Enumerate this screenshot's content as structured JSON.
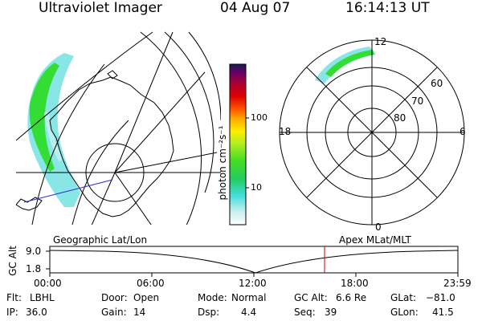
{
  "header": {
    "instrument": "Ultraviolet Imager",
    "date": "04 Aug 07",
    "time": "16:14:13 UT"
  },
  "colorbar": {
    "label": "photon cm⁻²s⁻¹",
    "ticks": [
      "100",
      "10"
    ]
  },
  "polar_plot": {
    "mlt_labels": [
      "12",
      "18",
      "6",
      "0"
    ],
    "lat_labels": [
      "60",
      "70",
      "80"
    ]
  },
  "orbit_panel": {
    "left_title": "Geographic Lat/Lon",
    "right_title": "Apex MLat/MLT",
    "y_axis_label": "GC Alt",
    "y_ticks": [
      "9.0",
      "1.8"
    ],
    "x_ticks": [
      "00:00",
      "06:00",
      "12:00",
      "18:00",
      "23:59"
    ]
  },
  "status": {
    "flt_label": "Flt:",
    "flt_value": "LBHL",
    "door_label": "Door:",
    "door_value": "Open",
    "mode_label": "Mode:",
    "mode_value": "Normal",
    "gcalt_label": "GC Alt:",
    "gcalt_value": "6.6 Re",
    "glat_label": "GLat:",
    "glat_value": "−81.0",
    "ip_label": "IP:",
    "ip_value": "36.0",
    "gain_label": "Gain:",
    "gain_value": "14",
    "dsp_label": "Dsp:",
    "dsp_value": "4.4",
    "seq_label": "Seq:",
    "seq_value": "39",
    "glon_label": "GLon:",
    "glon_value": "41.5"
  },
  "colors": {
    "aurora_green": "#33dd33",
    "aurora_cyan": "#88e6e6",
    "current_time_marker": "#cc0000",
    "track_line": "#3333cc"
  }
}
